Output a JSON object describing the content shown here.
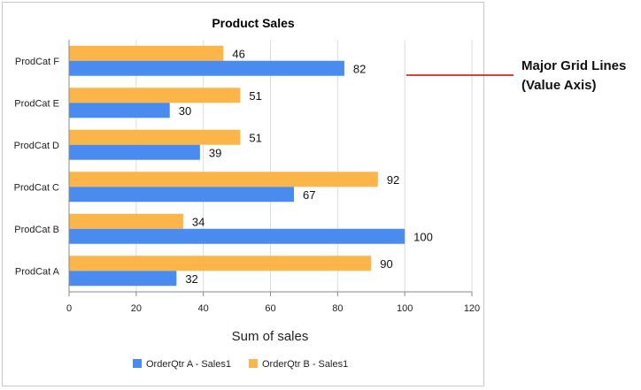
{
  "chart_data": {
    "type": "bar",
    "orientation": "horizontal",
    "title": "Product Sales",
    "xlabel": "Sum of sales",
    "ylabel": "",
    "xlim": [
      0,
      120
    ],
    "xticks": [
      0,
      20,
      40,
      60,
      80,
      100,
      120
    ],
    "grid": true,
    "legend_position": "bottom",
    "categories": [
      "ProdCat A",
      "ProdCat B",
      "ProdCat C",
      "ProdCat D",
      "ProdCat E",
      "ProdCat F"
    ],
    "series": [
      {
        "name": "OrderQtr A - Sales1",
        "color": "#4a8bf0",
        "values": [
          32,
          100,
          67,
          39,
          30,
          82
        ]
      },
      {
        "name": "OrderQtr B - Sales1",
        "color": "#fbb548",
        "values": [
          90,
          34,
          92,
          51,
          51,
          46
        ]
      }
    ]
  },
  "callout": {
    "line1": "Major Grid Lines",
    "line2": "(Value Axis)",
    "color": "#d00000"
  }
}
